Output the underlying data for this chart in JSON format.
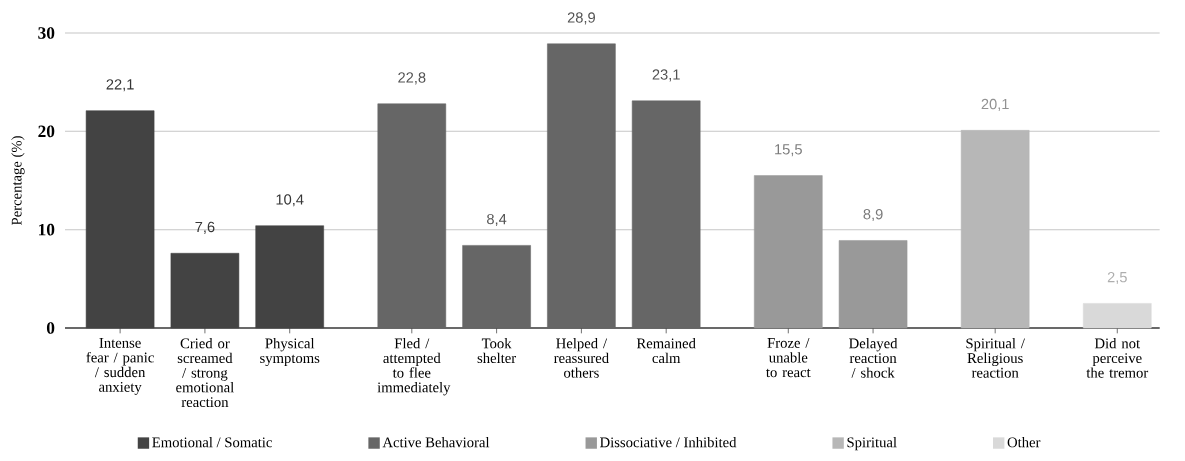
{
  "chart_data": {
    "type": "bar",
    "ylabel": "Percentage (%)",
    "categories": [
      "Intense fear / panic / sudden anxiety",
      "Cried or screamed / strong emotional reaction",
      "Physical symptoms",
      "Fled / attempted to flee immediately",
      "Took shelter",
      "Helped / reassured others",
      "Remained calm",
      "Froze / unable to react",
      "Delayed reaction / shock",
      "Spiritual / Religious reaction",
      "Did not perceive the tremor"
    ],
    "series": [
      {
        "name": "Emotional / Somatic",
        "color": "#434343",
        "values": [
          22.1,
          7.6,
          10.4,
          null,
          null,
          null,
          null,
          null,
          null,
          null,
          null
        ],
        "value_labels": [
          "22,1",
          "7,6",
          "10,4",
          null,
          null,
          null,
          null,
          null,
          null,
          null,
          null
        ]
      },
      {
        "name": "Active Behavioral",
        "color": "#666666",
        "values": [
          null,
          null,
          null,
          22.8,
          8.4,
          28.9,
          23.1,
          null,
          null,
          null,
          null
        ],
        "value_labels": [
          null,
          null,
          null,
          "22,8",
          "8,4",
          "28,9",
          "23,1",
          null,
          null,
          null,
          null
        ]
      },
      {
        "name": "Dissociative / Inhibited",
        "color": "#999999",
        "values": [
          null,
          null,
          null,
          null,
          null,
          null,
          null,
          15.5,
          8.9,
          null,
          null
        ],
        "value_labels": [
          null,
          null,
          null,
          null,
          null,
          null,
          null,
          "15,5",
          "8,9",
          null,
          null
        ]
      },
      {
        "name": "Spiritual",
        "color": "#b7b7b7",
        "values": [
          null,
          null,
          null,
          null,
          null,
          null,
          null,
          null,
          null,
          20.1,
          null
        ],
        "value_labels": [
          null,
          null,
          null,
          null,
          null,
          null,
          null,
          null,
          null,
          "20,1",
          null
        ]
      },
      {
        "name": "Other",
        "color": "#d9d9d9",
        "values": [
          null,
          null,
          null,
          null,
          null,
          null,
          null,
          null,
          null,
          null,
          2.5
        ],
        "value_labels": [
          null,
          null,
          null,
          null,
          null,
          null,
          null,
          null,
          null,
          null,
          "2,5"
        ]
      }
    ],
    "ylim": [
      0,
      30
    ],
    "yticks": [
      0,
      10,
      20,
      30
    ],
    "grid": "y",
    "legend": "bottom"
  }
}
